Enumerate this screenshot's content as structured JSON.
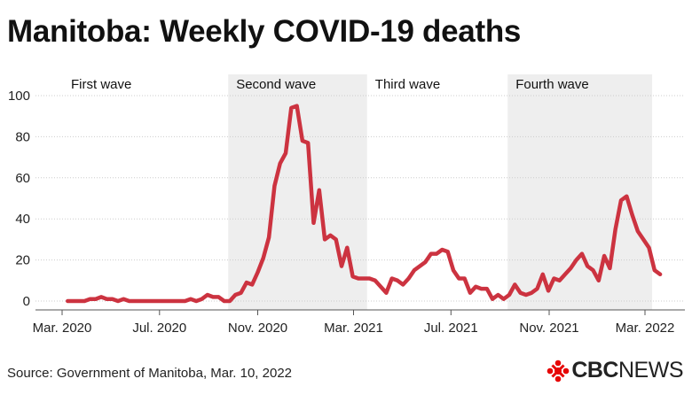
{
  "title": "Manitoba: Weekly COVID-19 deaths",
  "source": "Source: Government of Manitoba, Mar. 10, 2022",
  "brand": {
    "logo_icon": "cbc-gem-icon",
    "name": "CBC",
    "suffix": "NEWS"
  },
  "colors": {
    "line": "#cc3340",
    "band": "#eeeeee",
    "grid": "#cccccc",
    "axis": "#555555"
  },
  "chart_data": {
    "type": "line",
    "title": "Manitoba: Weekly COVID-19 deaths",
    "xlabel": "",
    "ylabel": "",
    "ylim": [
      0,
      100
    ],
    "yticks": [
      0,
      20,
      40,
      60,
      80,
      100
    ],
    "xlim": [
      "2020-03-01",
      "2022-03-27"
    ],
    "xticks": [
      {
        "date": "2020-03-01",
        "label": "Mar. 2020"
      },
      {
        "date": "2020-07-01",
        "label": "Jul. 2020"
      },
      {
        "date": "2020-11-01",
        "label": "Nov. 2020"
      },
      {
        "date": "2021-03-01",
        "label": "Mar. 2021"
      },
      {
        "date": "2021-07-01",
        "label": "Jul. 2021"
      },
      {
        "date": "2021-11-01",
        "label": "Nov. 2021"
      },
      {
        "date": "2022-03-01",
        "label": "Mar. 2022"
      }
    ],
    "grid": true,
    "bands": [
      {
        "label": "First wave",
        "start": "2020-03-01",
        "end": "2020-09-25",
        "shaded": false
      },
      {
        "label": "Second wave",
        "start": "2020-09-25",
        "end": "2021-03-18",
        "shaded": true
      },
      {
        "label": "Third wave",
        "start": "2021-03-18",
        "end": "2021-09-10",
        "shaded": false
      },
      {
        "label": "Fourth wave",
        "start": "2021-09-10",
        "end": "2022-03-10",
        "shaded": true
      }
    ],
    "series": [
      {
        "points": [
          [
            "2020-03-08",
            0
          ],
          [
            "2020-03-15",
            0
          ],
          [
            "2020-03-22",
            0
          ],
          [
            "2020-03-29",
            0
          ],
          [
            "2020-04-05",
            1
          ],
          [
            "2020-04-12",
            1
          ],
          [
            "2020-04-19",
            2
          ],
          [
            "2020-04-26",
            1
          ],
          [
            "2020-05-03",
            1
          ],
          [
            "2020-05-10",
            0
          ],
          [
            "2020-05-17",
            1
          ],
          [
            "2020-05-24",
            0
          ],
          [
            "2020-05-31",
            0
          ],
          [
            "2020-06-07",
            0
          ],
          [
            "2020-06-14",
            0
          ],
          [
            "2020-06-21",
            0
          ],
          [
            "2020-06-28",
            0
          ],
          [
            "2020-07-05",
            0
          ],
          [
            "2020-07-12",
            0
          ],
          [
            "2020-07-19",
            0
          ],
          [
            "2020-07-26",
            0
          ],
          [
            "2020-08-02",
            0
          ],
          [
            "2020-08-09",
            1
          ],
          [
            "2020-08-16",
            0
          ],
          [
            "2020-08-23",
            1
          ],
          [
            "2020-08-30",
            3
          ],
          [
            "2020-09-06",
            2
          ],
          [
            "2020-09-13",
            2
          ],
          [
            "2020-09-20",
            0
          ],
          [
            "2020-09-27",
            0
          ],
          [
            "2020-10-04",
            3
          ],
          [
            "2020-10-11",
            4
          ],
          [
            "2020-10-18",
            9
          ],
          [
            "2020-10-25",
            8
          ],
          [
            "2020-11-01",
            14
          ],
          [
            "2020-11-08",
            21
          ],
          [
            "2020-11-15",
            31
          ],
          [
            "2020-11-22",
            56
          ],
          [
            "2020-11-29",
            67
          ],
          [
            "2020-12-06",
            72
          ],
          [
            "2020-12-13",
            94
          ],
          [
            "2020-12-20",
            95
          ],
          [
            "2020-12-27",
            78
          ],
          [
            "2021-01-03",
            77
          ],
          [
            "2021-01-10",
            38
          ],
          [
            "2021-01-17",
            54
          ],
          [
            "2021-01-24",
            30
          ],
          [
            "2021-01-31",
            32
          ],
          [
            "2021-02-07",
            30
          ],
          [
            "2021-02-14",
            17
          ],
          [
            "2021-02-21",
            26
          ],
          [
            "2021-02-28",
            12
          ],
          [
            "2021-03-07",
            11
          ],
          [
            "2021-03-14",
            11
          ],
          [
            "2021-03-21",
            11
          ],
          [
            "2021-03-28",
            10
          ],
          [
            "2021-04-04",
            7
          ],
          [
            "2021-04-11",
            4
          ],
          [
            "2021-04-18",
            11
          ],
          [
            "2021-04-25",
            10
          ],
          [
            "2021-05-02",
            8
          ],
          [
            "2021-05-09",
            11
          ],
          [
            "2021-05-16",
            15
          ],
          [
            "2021-05-23",
            17
          ],
          [
            "2021-05-30",
            19
          ],
          [
            "2021-06-06",
            23
          ],
          [
            "2021-06-13",
            23
          ],
          [
            "2021-06-20",
            25
          ],
          [
            "2021-06-27",
            24
          ],
          [
            "2021-07-04",
            15
          ],
          [
            "2021-07-11",
            11
          ],
          [
            "2021-07-18",
            11
          ],
          [
            "2021-07-25",
            4
          ],
          [
            "2021-08-01",
            7
          ],
          [
            "2021-08-08",
            6
          ],
          [
            "2021-08-15",
            6
          ],
          [
            "2021-08-22",
            1
          ],
          [
            "2021-08-29",
            3
          ],
          [
            "2021-09-05",
            1
          ],
          [
            "2021-09-12",
            3
          ],
          [
            "2021-09-19",
            8
          ],
          [
            "2021-09-26",
            4
          ],
          [
            "2021-10-03",
            3
          ],
          [
            "2021-10-10",
            4
          ],
          [
            "2021-10-17",
            6
          ],
          [
            "2021-10-24",
            13
          ],
          [
            "2021-10-31",
            5
          ],
          [
            "2021-11-07",
            11
          ],
          [
            "2021-11-14",
            10
          ],
          [
            "2021-11-21",
            13
          ],
          [
            "2021-11-28",
            16
          ],
          [
            "2021-12-05",
            20
          ],
          [
            "2021-12-12",
            23
          ],
          [
            "2021-12-19",
            17
          ],
          [
            "2021-12-26",
            15
          ],
          [
            "2022-01-02",
            10
          ],
          [
            "2022-01-09",
            22
          ],
          [
            "2022-01-16",
            16
          ],
          [
            "2022-01-23",
            35
          ],
          [
            "2022-01-30",
            49
          ],
          [
            "2022-02-06",
            51
          ],
          [
            "2022-02-13",
            42
          ],
          [
            "2022-02-20",
            34
          ],
          [
            "2022-02-27",
            30
          ],
          [
            "2022-03-06",
            26
          ],
          [
            "2022-03-13",
            15
          ],
          [
            "2022-03-20",
            13
          ]
        ]
      }
    ]
  }
}
